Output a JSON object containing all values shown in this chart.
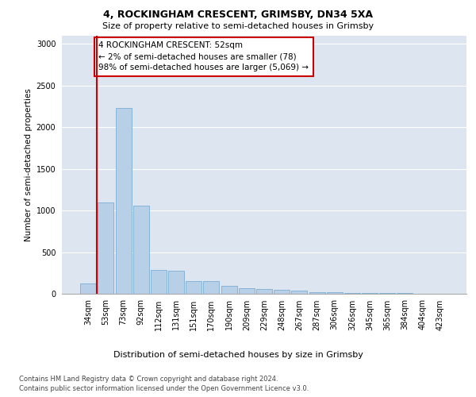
{
  "title1": "4, ROCKINGHAM CRESCENT, GRIMSBY, DN34 5XA",
  "title2": "Size of property relative to semi-detached houses in Grimsby",
  "xlabel": "Distribution of semi-detached houses by size in Grimsby",
  "ylabel": "Number of semi-detached properties",
  "footer1": "Contains HM Land Registry data © Crown copyright and database right 2024.",
  "footer2": "Contains public sector information licensed under the Open Government Licence v3.0.",
  "annotation_title": "4 ROCKINGHAM CRESCENT: 52sqm",
  "annotation_line1": "← 2% of semi-detached houses are smaller (78)",
  "annotation_line2": "98% of semi-detached houses are larger (5,069) →",
  "bar_labels": [
    "34sqm",
    "53sqm",
    "73sqm",
    "92sqm",
    "112sqm",
    "131sqm",
    "151sqm",
    "170sqm",
    "190sqm",
    "209sqm",
    "229sqm",
    "248sqm",
    "267sqm",
    "287sqm",
    "306sqm",
    "326sqm",
    "345sqm",
    "365sqm",
    "384sqm",
    "404sqm",
    "423sqm"
  ],
  "bar_values": [
    120,
    1100,
    2230,
    1060,
    290,
    280,
    155,
    155,
    100,
    70,
    55,
    45,
    35,
    20,
    15,
    10,
    8,
    6,
    5,
    4,
    3
  ],
  "bar_color": "#b8cfe8",
  "bar_edge_color": "#7aadd4",
  "property_line_color": "#cc0000",
  "annotation_box_color": "#cc0000",
  "background_color": "#dde6f0",
  "ylim": [
    0,
    3100
  ],
  "yticks": [
    0,
    500,
    1000,
    1500,
    2000,
    2500,
    3000
  ],
  "property_bar_index": 0,
  "grid_color": "#ffffff",
  "title1_fontsize": 9,
  "title2_fontsize": 8,
  "ylabel_fontsize": 7.5,
  "tick_fontsize": 7,
  "annotation_fontsize": 7.5,
  "xlabel_fontsize": 8,
  "footer_fontsize": 6
}
